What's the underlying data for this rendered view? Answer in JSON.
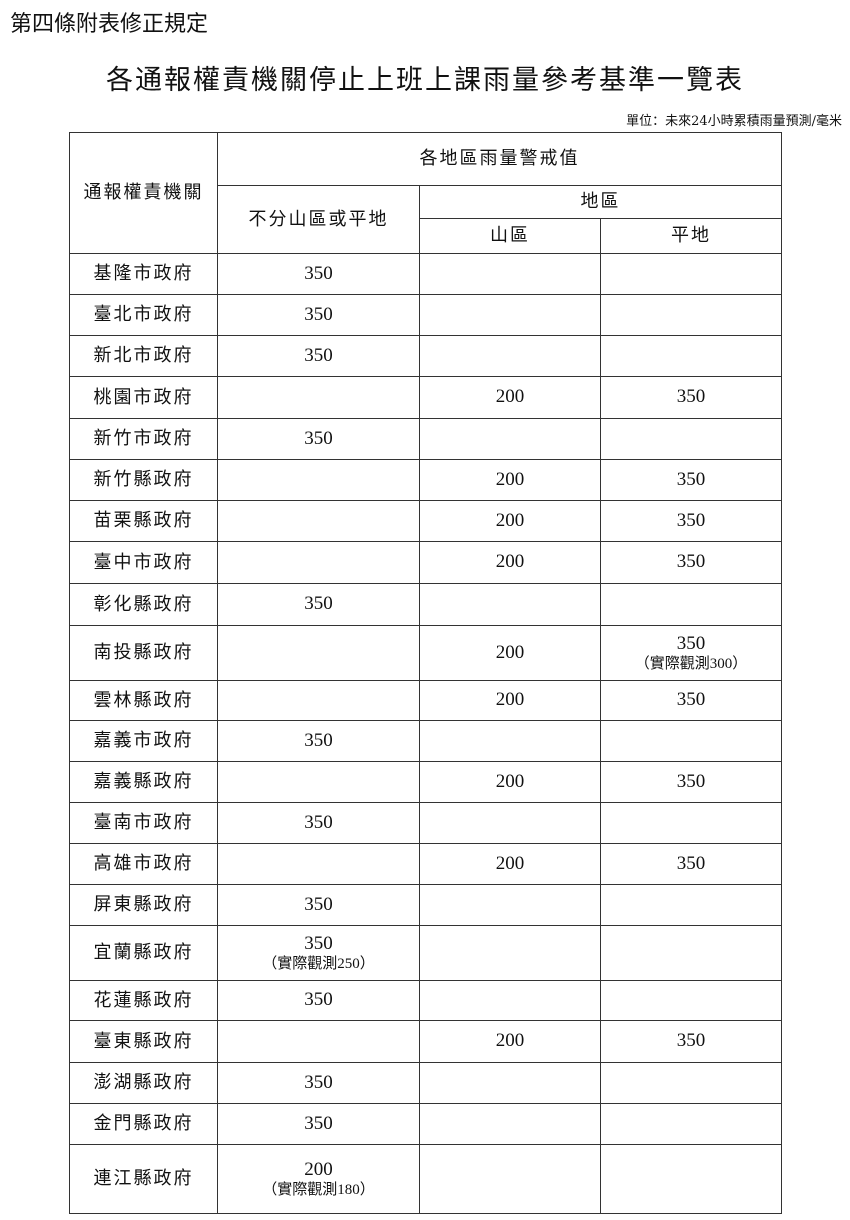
{
  "heading": "第四條附表修正規定",
  "title": "各通報權責機關停止上班上課雨量參考基準一覽表",
  "unit": "單位：未來24小時累積雨量預測/毫米",
  "headers": {
    "agency": "通報權責機關",
    "threshold": "各地區雨量警戒值",
    "undivided": "不分山區或平地",
    "region": "地區",
    "mountain": "山區",
    "plain": "平地"
  },
  "rows": [
    {
      "agency": "基隆市政府",
      "undivided": "350",
      "undivided_note": "",
      "mountain": "",
      "plain": "",
      "plain_note": ""
    },
    {
      "agency": "臺北市政府",
      "undivided": "350",
      "undivided_note": "",
      "mountain": "",
      "plain": "",
      "plain_note": ""
    },
    {
      "agency": "新北市政府",
      "undivided": "350",
      "undivided_note": "",
      "mountain": "",
      "plain": "",
      "plain_note": ""
    },
    {
      "agency": "桃園市政府",
      "undivided": "",
      "undivided_note": "",
      "mountain": "200",
      "plain": "350",
      "plain_note": ""
    },
    {
      "agency": "新竹市政府",
      "undivided": "350",
      "undivided_note": "",
      "mountain": "",
      "plain": "",
      "plain_note": ""
    },
    {
      "agency": "新竹縣政府",
      "undivided": "",
      "undivided_note": "",
      "mountain": "200",
      "plain": "350",
      "plain_note": ""
    },
    {
      "agency": "苗栗縣政府",
      "undivided": "",
      "undivided_note": "",
      "mountain": "200",
      "plain": "350",
      "plain_note": ""
    },
    {
      "agency": "臺中市政府",
      "undivided": "",
      "undivided_note": "",
      "mountain": "200",
      "plain": "350",
      "plain_note": ""
    },
    {
      "agency": "彰化縣政府",
      "undivided": "350",
      "undivided_note": "",
      "mountain": "",
      "plain": "",
      "plain_note": ""
    },
    {
      "agency": "南投縣政府",
      "undivided": "",
      "undivided_note": "",
      "mountain": "200",
      "plain": "350",
      "plain_note": "（實際觀測300）"
    },
    {
      "agency": "雲林縣政府",
      "undivided": "",
      "undivided_note": "",
      "mountain": "200",
      "plain": "350",
      "plain_note": ""
    },
    {
      "agency": "嘉義市政府",
      "undivided": "350",
      "undivided_note": "",
      "mountain": "",
      "plain": "",
      "plain_note": ""
    },
    {
      "agency": "嘉義縣政府",
      "undivided": "",
      "undivided_note": "",
      "mountain": "200",
      "plain": "350",
      "plain_note": ""
    },
    {
      "agency": "臺南市政府",
      "undivided": "350",
      "undivided_note": "",
      "mountain": "",
      "plain": "",
      "plain_note": ""
    },
    {
      "agency": "高雄市政府",
      "undivided": "",
      "undivided_note": "",
      "mountain": "200",
      "plain": "350",
      "plain_note": ""
    },
    {
      "agency": "屏東縣政府",
      "undivided": "350",
      "undivided_note": "",
      "mountain": "",
      "plain": "",
      "plain_note": ""
    },
    {
      "agency": "宜蘭縣政府",
      "undivided": "350",
      "undivided_note": "（實際觀測250）",
      "mountain": "",
      "plain": "",
      "plain_note": ""
    },
    {
      "agency": "花蓮縣政府",
      "undivided": "350",
      "undivided_note": "",
      "mountain": "",
      "plain": "",
      "plain_note": ""
    },
    {
      "agency": "臺東縣政府",
      "undivided": "",
      "undivided_note": "",
      "mountain": "200",
      "plain": "350",
      "plain_note": ""
    },
    {
      "agency": "澎湖縣政府",
      "undivided": "350",
      "undivided_note": "",
      "mountain": "",
      "plain": "",
      "plain_note": ""
    },
    {
      "agency": "金門縣政府",
      "undivided": "350",
      "undivided_note": "",
      "mountain": "",
      "plain": "",
      "plain_note": ""
    },
    {
      "agency": "連江縣政府",
      "undivided": "200",
      "undivided_note": "（實際觀測180）",
      "mountain": "",
      "plain": "",
      "plain_note": ""
    }
  ]
}
